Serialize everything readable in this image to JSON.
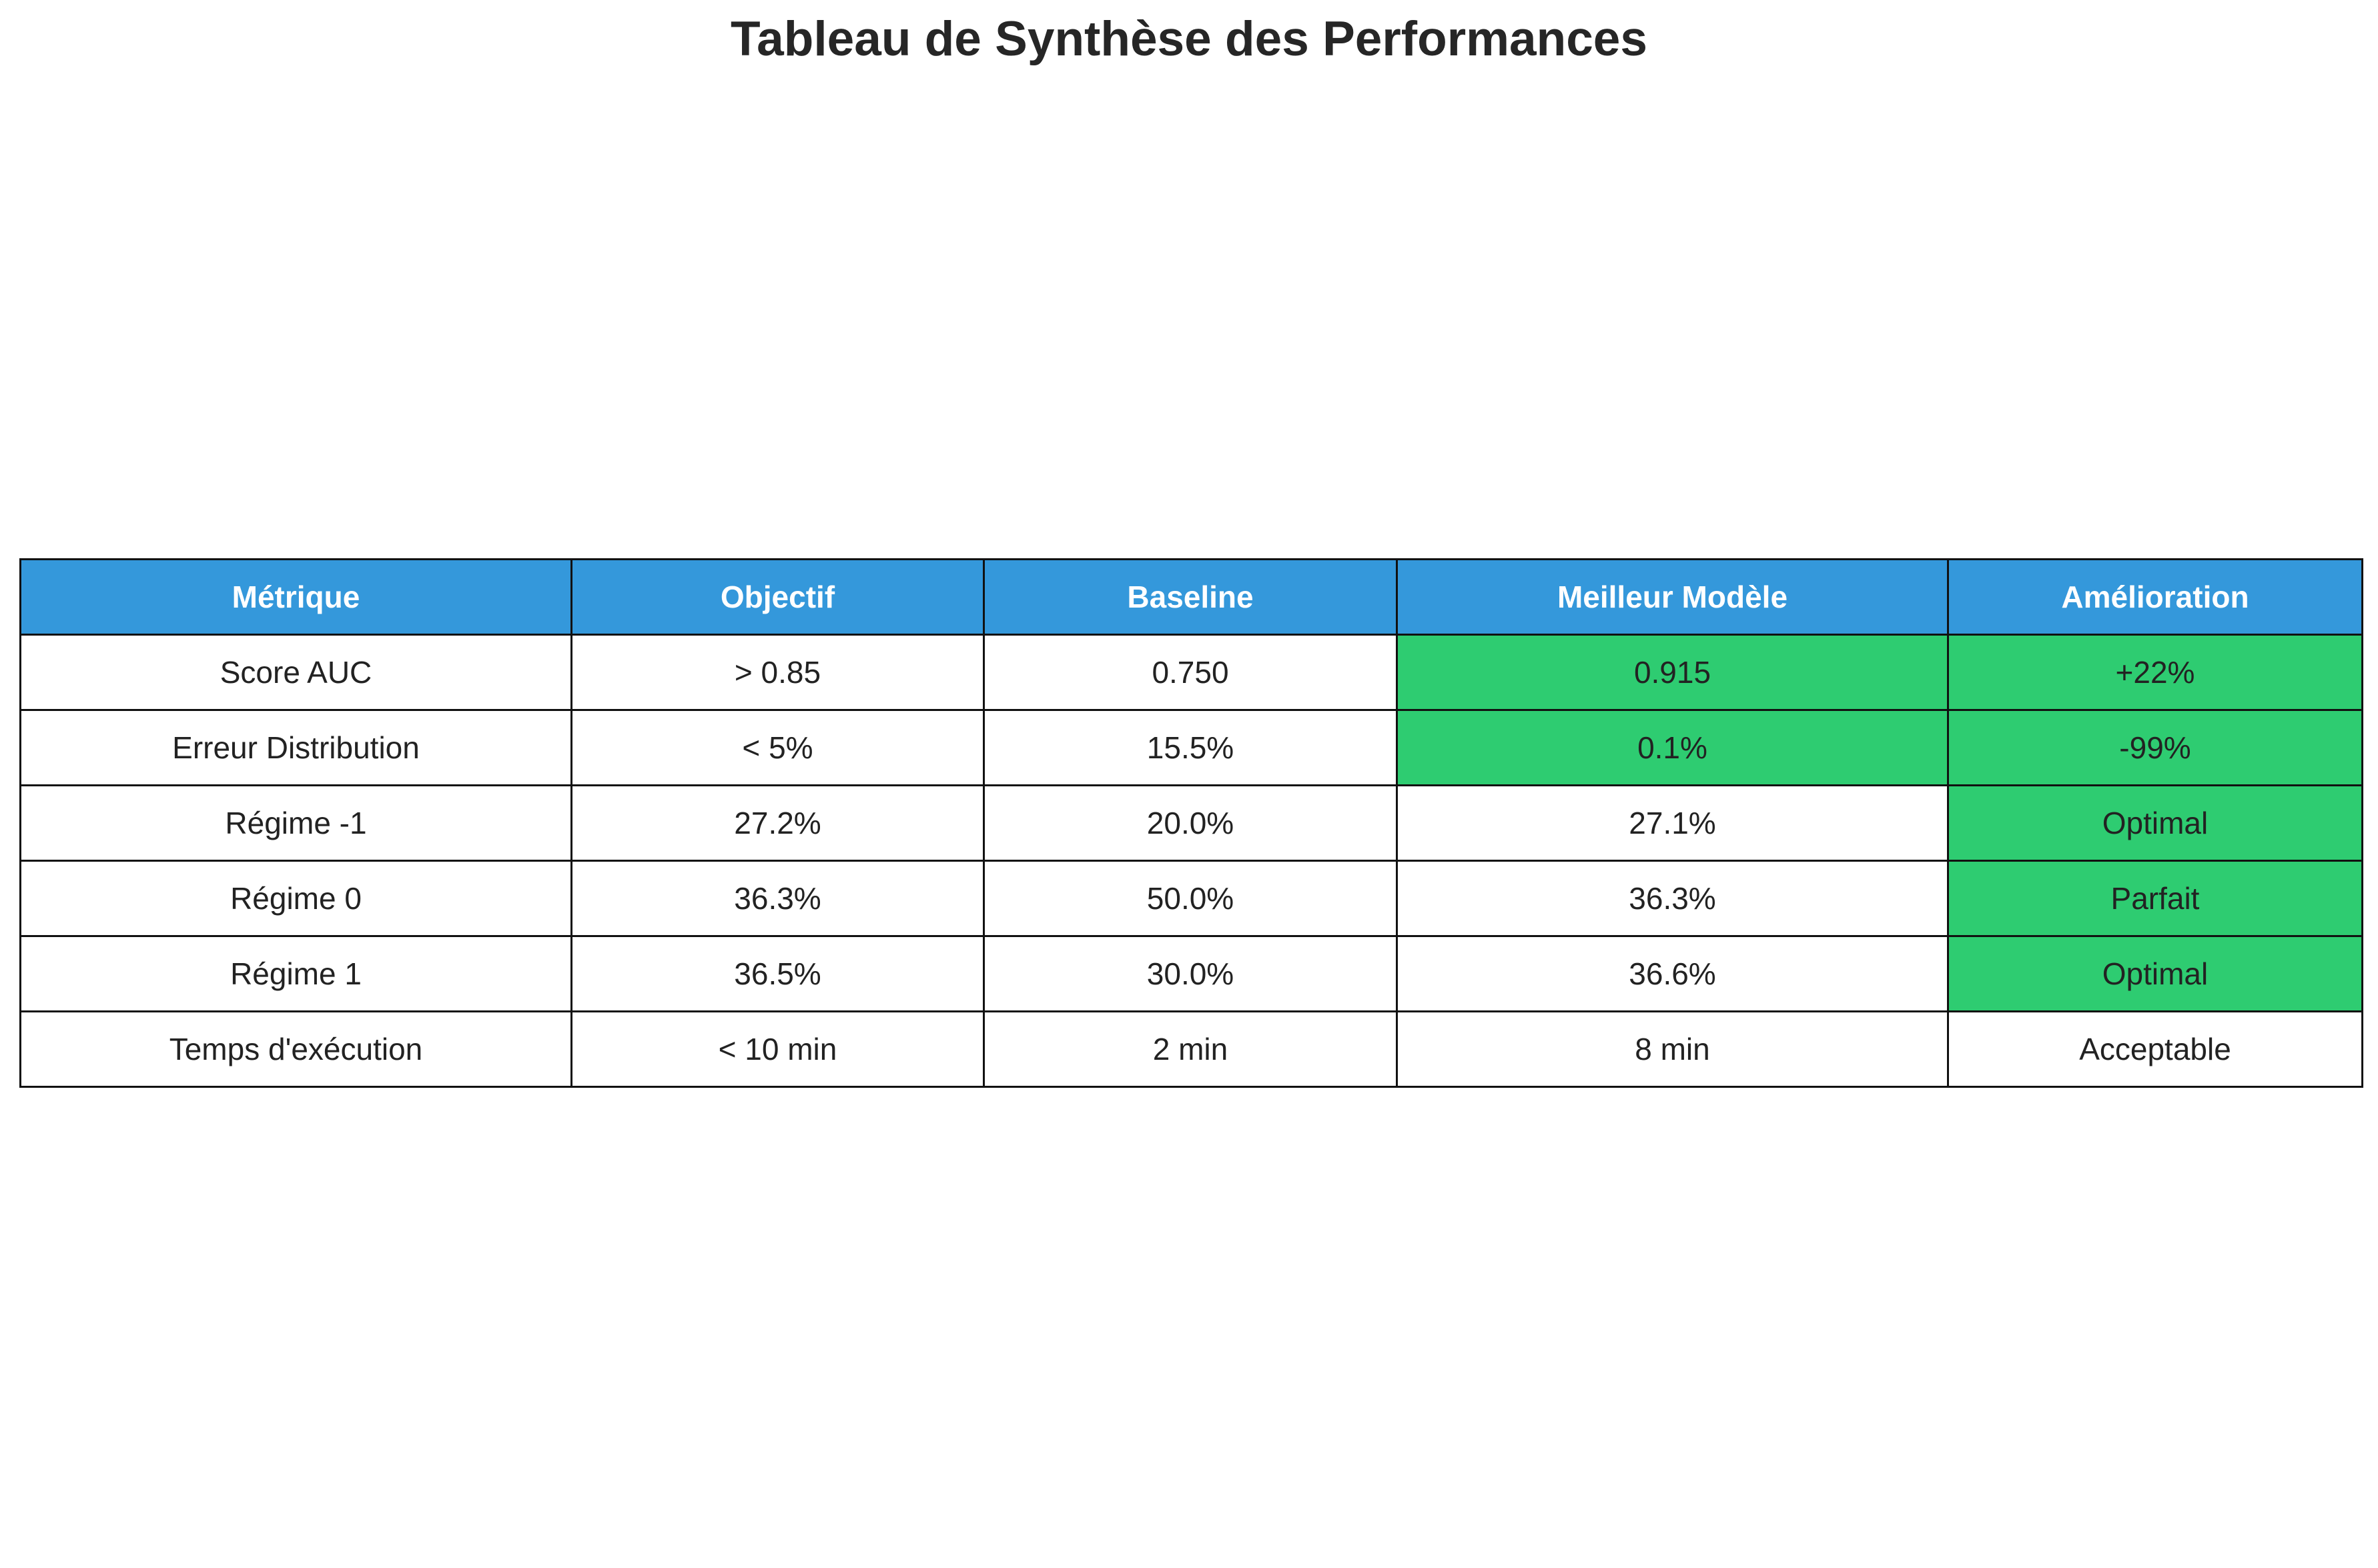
{
  "chart_data": {
    "type": "table",
    "title": "Tableau de Synthèse des Performances",
    "header_color": "#3498db",
    "highlight_color": "#2ecc71",
    "default_cell_color": "#ffffff",
    "columns": [
      "Métrique",
      "Objectif",
      "Baseline",
      "Meilleur Modèle",
      "Amélioration"
    ],
    "rows": [
      {
        "cells": [
          "Score AUC",
          "> 0.85",
          "0.750",
          "0.915",
          "+22%"
        ],
        "highlighted": [
          false,
          false,
          false,
          true,
          true
        ]
      },
      {
        "cells": [
          "Erreur Distribution",
          "< 5%",
          "15.5%",
          "0.1%",
          "-99%"
        ],
        "highlighted": [
          false,
          false,
          false,
          true,
          true
        ]
      },
      {
        "cells": [
          "Régime -1",
          "27.2%",
          "20.0%",
          "27.1%",
          "Optimal"
        ],
        "highlighted": [
          false,
          false,
          false,
          false,
          true
        ]
      },
      {
        "cells": [
          "Régime 0",
          "36.3%",
          "50.0%",
          "36.3%",
          "Parfait"
        ],
        "highlighted": [
          false,
          false,
          false,
          false,
          true
        ]
      },
      {
        "cells": [
          "Régime 1",
          "36.5%",
          "30.0%",
          "36.6%",
          "Optimal"
        ],
        "highlighted": [
          false,
          false,
          false,
          false,
          true
        ]
      },
      {
        "cells": [
          "Temps d'exécution",
          "< 10 min",
          "2 min",
          "8 min",
          "Acceptable"
        ],
        "highlighted": [
          false,
          false,
          false,
          false,
          false
        ]
      }
    ]
  }
}
